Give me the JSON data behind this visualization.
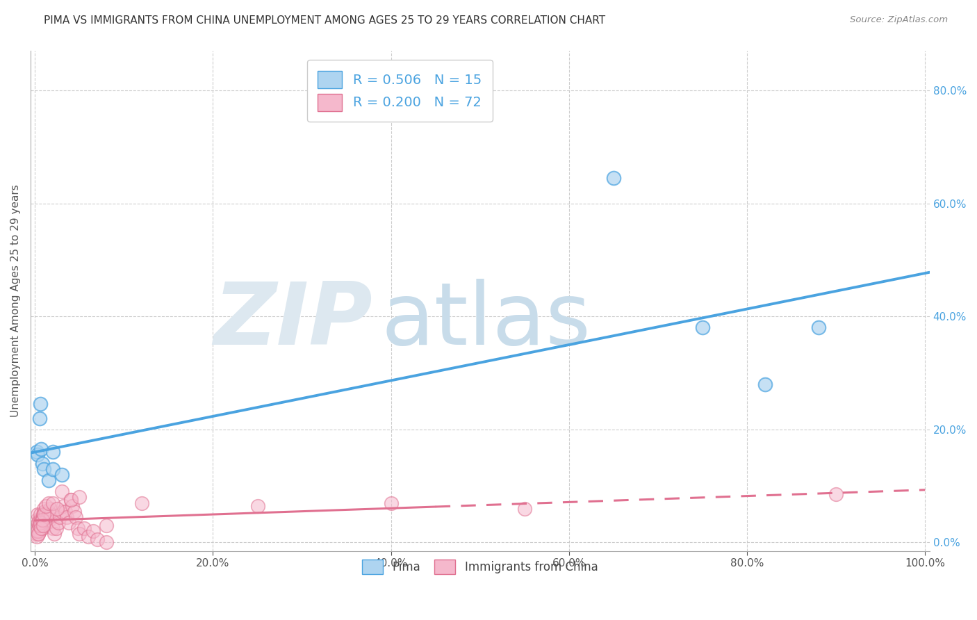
{
  "title": "PIMA VS IMMIGRANTS FROM CHINA UNEMPLOYMENT AMONG AGES 25 TO 29 YEARS CORRELATION CHART",
  "source": "Source: ZipAtlas.com",
  "ylabel": "Unemployment Among Ages 25 to 29 years",
  "series1_name": "Pima",
  "series1_color": "#aed4f0",
  "series1_R": "0.506",
  "series1_N": "15",
  "series1_x": [
    0.002,
    0.003,
    0.005,
    0.006,
    0.007,
    0.008,
    0.01,
    0.015,
    0.02,
    0.65,
    0.75,
    0.82,
    0.88,
    0.02,
    0.03
  ],
  "series1_y": [
    0.16,
    0.155,
    0.22,
    0.245,
    0.165,
    0.14,
    0.13,
    0.11,
    0.13,
    0.645,
    0.38,
    0.28,
    0.38,
    0.16,
    0.12
  ],
  "series2_name": "Immigrants from China",
  "series2_color": "#f5b8cc",
  "series2_R": "0.200",
  "series2_N": "72",
  "series2_x": [
    0.0,
    0.001,
    0.001,
    0.002,
    0.002,
    0.003,
    0.003,
    0.004,
    0.004,
    0.005,
    0.005,
    0.006,
    0.006,
    0.007,
    0.007,
    0.008,
    0.008,
    0.009,
    0.009,
    0.01,
    0.01,
    0.011,
    0.012,
    0.013,
    0.014,
    0.015,
    0.016,
    0.017,
    0.018,
    0.02,
    0.022,
    0.024,
    0.026,
    0.028,
    0.03,
    0.032,
    0.034,
    0.036,
    0.038,
    0.04,
    0.042,
    0.044,
    0.046,
    0.048,
    0.05,
    0.055,
    0.06,
    0.065,
    0.07,
    0.08,
    0.002,
    0.003,
    0.004,
    0.005,
    0.006,
    0.007,
    0.008,
    0.009,
    0.01,
    0.012,
    0.015,
    0.02,
    0.025,
    0.03,
    0.04,
    0.05,
    0.12,
    0.25,
    0.4,
    0.55,
    0.08,
    0.9
  ],
  "series2_y": [
    0.02,
    0.03,
    0.015,
    0.04,
    0.02,
    0.05,
    0.025,
    0.035,
    0.015,
    0.02,
    0.04,
    0.05,
    0.03,
    0.04,
    0.03,
    0.035,
    0.025,
    0.045,
    0.05,
    0.06,
    0.04,
    0.055,
    0.05,
    0.04,
    0.045,
    0.055,
    0.04,
    0.06,
    0.05,
    0.025,
    0.015,
    0.025,
    0.035,
    0.045,
    0.055,
    0.065,
    0.055,
    0.045,
    0.035,
    0.075,
    0.065,
    0.055,
    0.045,
    0.025,
    0.015,
    0.025,
    0.01,
    0.02,
    0.005,
    0.03,
    0.01,
    0.02,
    0.015,
    0.03,
    0.035,
    0.025,
    0.04,
    0.03,
    0.05,
    0.065,
    0.07,
    0.07,
    0.06,
    0.09,
    0.075,
    0.08,
    0.07,
    0.065,
    0.07,
    0.06,
    0.0,
    0.085
  ],
  "xmin": -0.005,
  "xmax": 1.005,
  "ymin": -0.015,
  "ymax": 0.87,
  "ytick_vals": [
    0.0,
    0.2,
    0.4,
    0.6,
    0.8
  ],
  "ytick_labels": [
    "0.0%",
    "20.0%",
    "40.0%",
    "60.0%",
    "80.0%"
  ],
  "xtick_vals": [
    0.0,
    0.2,
    0.4,
    0.6,
    0.8,
    1.0
  ],
  "xtick_labels": [
    "0.0%",
    "20.0%",
    "40.0%",
    "60.0%",
    "80.0%",
    "100.0%"
  ],
  "bg_color": "#ffffff",
  "grid_color": "#c8c8c8",
  "watermark_zip": "ZIP",
  "watermark_atlas": "atlas",
  "watermark_color_zip": "#dde8f0",
  "watermark_color_atlas": "#c8dcea",
  "line1_color": "#4aa3e0",
  "line2_color": "#e07090",
  "title_fontsize": 11,
  "axis_label_fontsize": 11,
  "tick_fontsize": 11,
  "legend_fontsize": 14
}
